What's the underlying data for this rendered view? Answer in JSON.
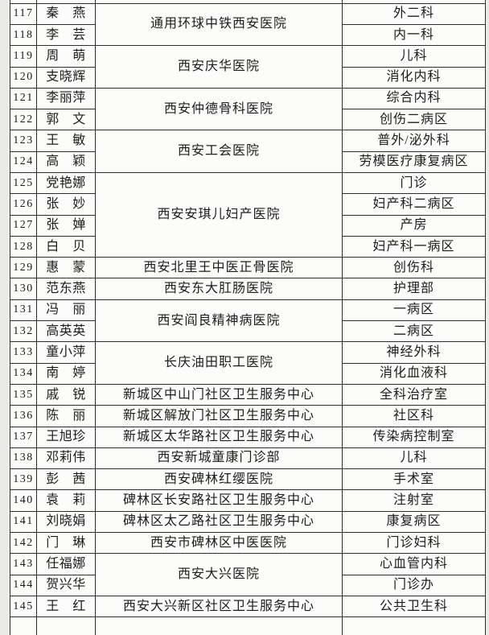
{
  "page": {
    "background_color": "#eceae7",
    "table_background_color": "#fcfcfa",
    "border_color": "#2e2e2e",
    "text_color": "#1c1c1c"
  },
  "table": {
    "columns": [
      {
        "key": "no",
        "label": ""
      },
      {
        "key": "name",
        "label": ""
      },
      {
        "key": "hospital",
        "label": ""
      },
      {
        "key": "department",
        "label": ""
      }
    ],
    "rows": [
      {
        "no": "117",
        "name": "秦　燕",
        "hospital": "通用环球中铁西安医院",
        "hospital_rowspan": 2,
        "department": "外二科"
      },
      {
        "no": "118",
        "name": "李　芸",
        "department": "内一科"
      },
      {
        "no": "119",
        "name": "周　萌",
        "hospital": "西安庆华医院",
        "hospital_rowspan": 2,
        "department": "儿科"
      },
      {
        "no": "120",
        "name": "支晓辉",
        "department": "消化内科"
      },
      {
        "no": "121",
        "name": "李丽萍",
        "hospital": "西安仲德骨科医院",
        "hospital_rowspan": 2,
        "department": "综合内科"
      },
      {
        "no": "122",
        "name": "郭　文",
        "department": "创伤二病区"
      },
      {
        "no": "123",
        "name": "王　敏",
        "hospital": "西安工会医院",
        "hospital_rowspan": 2,
        "department": "普外/泌外科"
      },
      {
        "no": "124",
        "name": "高　颖",
        "department": "劳模医疗康复病区"
      },
      {
        "no": "125",
        "name": "党艳娜",
        "hospital": "西安安琪儿妇产医院",
        "hospital_rowspan": 4,
        "department": "门诊"
      },
      {
        "no": "126",
        "name": "张　妙",
        "department": "妇产科二病区"
      },
      {
        "no": "127",
        "name": "张　婵",
        "department": "产房"
      },
      {
        "no": "128",
        "name": "白　贝",
        "department": "妇产科一病区"
      },
      {
        "no": "129",
        "name": "惠　蒙",
        "hospital": "西安北里王中医正骨医院",
        "department": "创伤科"
      },
      {
        "no": "130",
        "name": "范东燕",
        "hospital": "西安东大肛肠医院",
        "department": "护理部"
      },
      {
        "no": "131",
        "name": "冯　丽",
        "hospital": "西安阎良精神病医院",
        "hospital_rowspan": 2,
        "department": "一病区"
      },
      {
        "no": "132",
        "name": "高英英",
        "department": "二病区"
      },
      {
        "no": "133",
        "name": "童小萍",
        "hospital": "长庆油田职工医院",
        "hospital_rowspan": 2,
        "department": "神经外科"
      },
      {
        "no": "134",
        "name": "南　婷",
        "department": "消化血液科"
      },
      {
        "no": "135",
        "name": "戚　锐",
        "hospital": "新城区中山门社区卫生服务中心",
        "department": "全科治疗室"
      },
      {
        "no": "136",
        "name": "陈　丽",
        "hospital": "新城区解放门社区卫生服务中心",
        "department": "社区科"
      },
      {
        "no": "137",
        "name": "王旭珍",
        "hospital": "新城区太华路社区卫生服务中心",
        "department": "传染病控制室"
      },
      {
        "no": "138",
        "name": "邓莉伟",
        "hospital": "西安新城童康门诊部",
        "department": "儿科"
      },
      {
        "no": "139",
        "name": "彭　茜",
        "hospital": "西安碑林红缨医院",
        "department": "手术室"
      },
      {
        "no": "140",
        "name": "袁　莉",
        "hospital": "碑林区长安路社区卫生服务中心",
        "department": "注射室"
      },
      {
        "no": "141",
        "name": "刘晓娟",
        "hospital": "碑林区太乙路社区卫生服务中心",
        "department": "康复病区"
      },
      {
        "no": "142",
        "name": "门　琳",
        "hospital": "西安市碑林区中医医院",
        "department": "门诊妇科"
      },
      {
        "no": "143",
        "name": "任福娜",
        "hospital": "西安大兴医院",
        "hospital_rowspan": 2,
        "department": "心血管内科"
      },
      {
        "no": "144",
        "name": "贺兴华",
        "department": "门诊办"
      },
      {
        "no": "145",
        "name": "王　红",
        "hospital": "西安大兴新区社区卫生服务中心",
        "department": "公共卫生科"
      }
    ]
  }
}
